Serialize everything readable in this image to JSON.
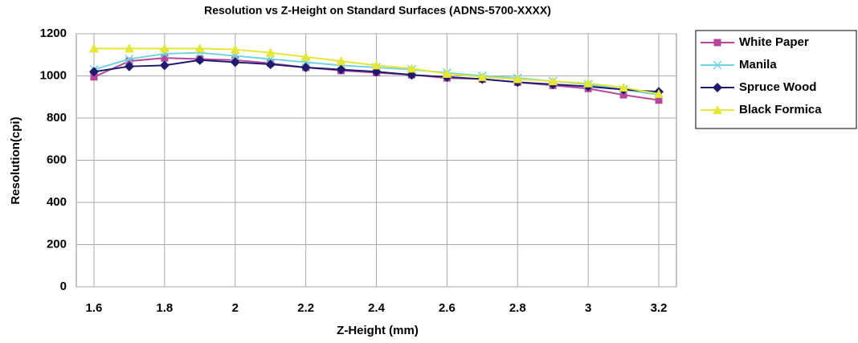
{
  "chart_data": {
    "type": "line",
    "title": "Resolution vs Z-Height on Standard Surfaces (ADNS-5700-XXXX)",
    "x_label": "Z-Height (mm)",
    "y_label": "Resolution(cpi)",
    "x": [
      1.6,
      1.7,
      1.8,
      1.9,
      2.0,
      2.1,
      2.2,
      2.3,
      2.4,
      2.5,
      2.6,
      2.7,
      2.8,
      2.9,
      3.0,
      3.1,
      3.2
    ],
    "series": [
      {
        "name": "White Paper",
        "color": "#b5469b",
        "marker": "square",
        "values": [
          995,
          1070,
          1085,
          1080,
          1075,
          1060,
          1040,
          1025,
          1015,
          1005,
          990,
          985,
          970,
          955,
          940,
          910,
          885
        ]
      },
      {
        "name": "Manila",
        "color": "#6fd3e0",
        "marker": "x",
        "values": [
          1030,
          1080,
          1105,
          1110,
          1095,
          1080,
          1065,
          1050,
          1040,
          1030,
          1015,
          1000,
          990,
          975,
          960,
          935,
          910
        ]
      },
      {
        "name": "Spruce Wood",
        "color": "#1f1a6e",
        "marker": "diamond",
        "values": [
          1020,
          1045,
          1050,
          1075,
          1065,
          1055,
          1040,
          1030,
          1020,
          1005,
          995,
          985,
          970,
          960,
          950,
          935,
          925
        ]
      },
      {
        "name": "Black Formica",
        "color": "#e6e635",
        "marker": "triangle",
        "values": [
          1130,
          1130,
          1130,
          1130,
          1125,
          1110,
          1090,
          1070,
          1050,
          1035,
          1010,
          995,
          985,
          975,
          965,
          945,
          915
        ]
      }
    ],
    "xlim": [
      1.55,
      3.25
    ],
    "xticks": [
      1.6,
      1.8,
      2,
      2.2,
      2.4,
      2.6,
      2.8,
      3,
      3.2
    ],
    "ylim": [
      0,
      1200
    ],
    "yticks": [
      0,
      200,
      400,
      600,
      800,
      1000,
      1200
    ],
    "grid": true,
    "legend": "right"
  }
}
